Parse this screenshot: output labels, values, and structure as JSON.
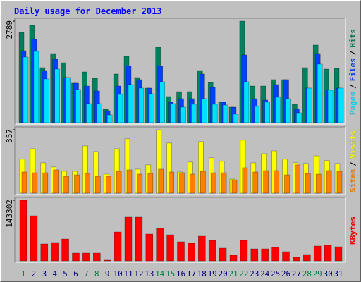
{
  "title": "Daily usage for December 2013",
  "legend_separator": "/",
  "categories": [
    "1",
    "2",
    "3",
    "4",
    "5",
    "6",
    "7",
    "8",
    "9",
    "10",
    "11",
    "12",
    "13",
    "14",
    "15",
    "16",
    "17",
    "18",
    "19",
    "20",
    "21",
    "22",
    "23",
    "24",
    "25",
    "26",
    "27",
    "28",
    "29",
    "30",
    "31"
  ],
  "category_colors": [
    "#008040",
    "#000080",
    "#000080",
    "#000080",
    "#000080",
    "#000080",
    "#008040",
    "#008040",
    "#000080",
    "#000080",
    "#000080",
    "#000080",
    "#000080",
    "#008040",
    "#008040",
    "#000080",
    "#000080",
    "#000080",
    "#000080",
    "#000080",
    "#008040",
    "#008040",
    "#000080",
    "#000080",
    "#000080",
    "#000080",
    "#000080",
    "#008040",
    "#008040",
    "#000080",
    "#000080"
  ],
  "chart_data": [
    {
      "type": "bar",
      "ylim": [
        0,
        2789
      ],
      "yticks": [
        2789
      ],
      "series": [
        {
          "name": "Hits",
          "color": "#00805c",
          "values": [
            2479,
            2673,
            1511,
            1898,
            1646,
            1085,
            1395,
            1220,
            368,
            1337,
            1821,
            1240,
            949,
            2073,
            717,
            852,
            852,
            1433,
            1104,
            562,
            426,
            2789,
            1007,
            1007,
            1182,
            1182,
            504,
            1511,
            2131,
            1472,
            1491
          ]
        },
        {
          "name": "Files",
          "color": "#0040ff",
          "values": [
            1976,
            2286,
            1433,
            1743,
            1240,
            1085,
            1007,
            872,
            329,
            1007,
            1550,
            1182,
            949,
            1550,
            562,
            659,
            659,
            1337,
            969,
            562,
            426,
            1860,
            659,
            620,
            1046,
            1182,
            368,
            949,
            1898,
            891,
            949
          ]
        },
        {
          "name": "Pages",
          "color": "#00e0ff",
          "values": [
            1801,
            1956,
            1201,
            1472,
            1240,
            910,
            523,
            523,
            213,
            775,
            1046,
            949,
            794,
            1123,
            523,
            426,
            504,
            659,
            504,
            484,
            232,
            1123,
            446,
            562,
            697,
            659,
            271,
            949,
            1608,
            891,
            949
          ]
        }
      ]
    },
    {
      "type": "bar",
      "ylim": [
        0,
        357
      ],
      "yticks": [
        357
      ],
      "series": [
        {
          "name": "Visits",
          "color": "#ffff00",
          "values": [
            191,
            250,
            171,
            147,
            123,
            123,
            266,
            234,
            107,
            250,
            306,
            135,
            159,
            357,
            282,
            119,
            175,
            290,
            199,
            179,
            79,
            298,
            171,
            222,
            238,
            191,
            171,
            167,
            210,
            183,
            167
          ]
        },
        {
          "name": "Sites",
          "color": "#ff8000",
          "values": [
            119,
            115,
            115,
            131,
            95,
            103,
            111,
            95,
            95,
            123,
            131,
            107,
            111,
            135,
            119,
            115,
            107,
            123,
            115,
            115,
            75,
            143,
            119,
            127,
            127,
            103,
            159,
            111,
            107,
            127,
            123
          ]
        }
      ]
    },
    {
      "type": "bar",
      "ylim": [
        0,
        143302
      ],
      "yticks": [
        143302
      ],
      "series": [
        {
          "name": "KBytes",
          "color": "#ff0000",
          "values": [
            143302,
            106600,
            40000,
            43300,
            51600,
            18300,
            18300,
            18300,
            1700,
            68300,
            103300,
            103300,
            63300,
            76600,
            61600,
            45000,
            41600,
            58300,
            48300,
            30000,
            13300,
            48300,
            28300,
            28300,
            31700,
            21700,
            8300,
            15000,
            35000,
            36600,
            33300
          ]
        }
      ]
    }
  ]
}
